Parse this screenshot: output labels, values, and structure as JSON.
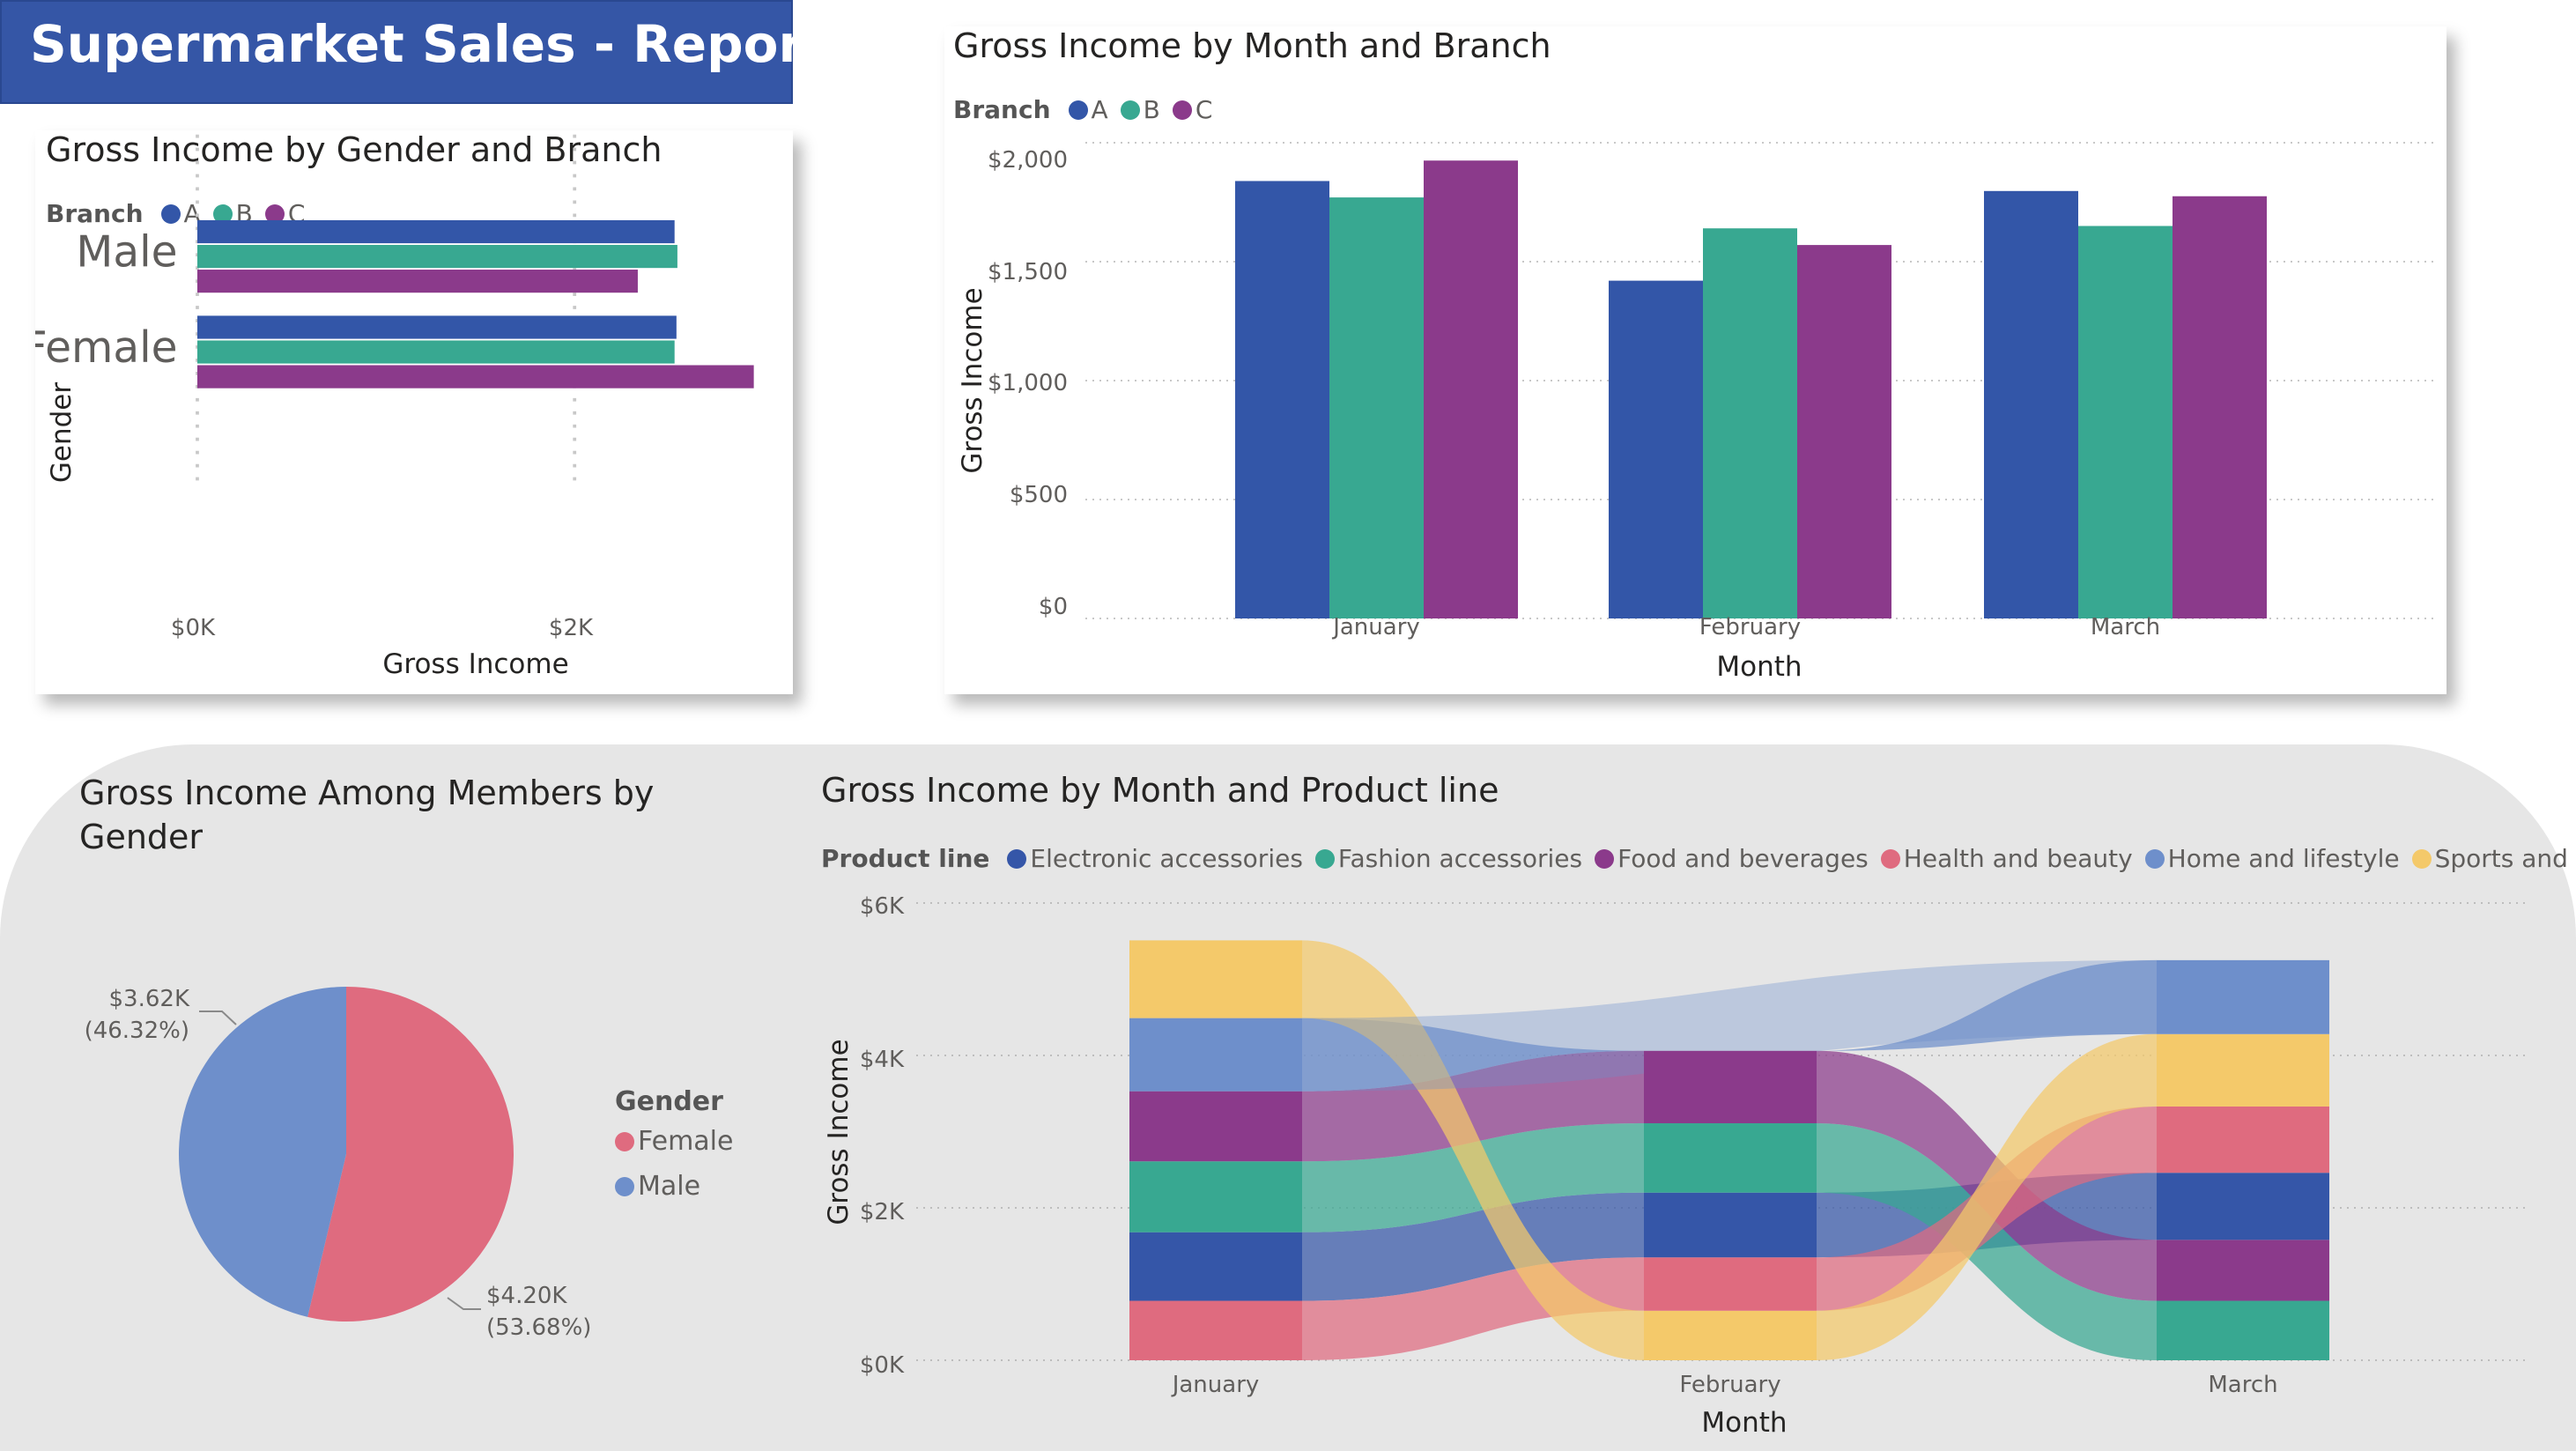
{
  "report": {
    "title": "Supermarket Sales - Report"
  },
  "colors": {
    "A": "#3356a8",
    "B": "#38a891",
    "C": "#8b3a8b",
    "female": "#df6b7f",
    "male": "#6e8fcb",
    "electronic": "#3556a8",
    "fashion": "#38a891",
    "food": "#8b3a8b",
    "health": "#df6b7f",
    "home": "#6e8fcb",
    "sports": "#f4c96a"
  },
  "charts": {
    "gender_branch": {
      "title": "Gross Income by Gender and Branch",
      "legend_title": "Branch",
      "legend": [
        "A",
        "B",
        "C"
      ],
      "xlabel": "Gross Income",
      "ylabel": "Gender",
      "xticks": [
        "$0K",
        "$2K"
      ]
    },
    "month_branch": {
      "title": "Gross Income by Month and Branch",
      "legend_title": "Branch",
      "legend": [
        "A",
        "B",
        "C"
      ],
      "xlabel": "Month",
      "ylabel": "Gross Income",
      "yticks": [
        "$2,000",
        "$1,500",
        "$1,000",
        "$500",
        "$0"
      ]
    },
    "members_gender": {
      "title_line1": "Gross Income Among Members by",
      "title_line2": "Gender",
      "legend_title": "Gender",
      "legend": [
        "Female",
        "Male"
      ],
      "male_label_value": "$3.62K",
      "male_label_pct": "(46.32%)",
      "female_label_value": "$4.20K",
      "female_label_pct": "(53.68%)"
    },
    "month_product": {
      "title": "Gross Income by Month and Product line",
      "legend_title": "Product line",
      "legend": [
        "Electronic accessories",
        "Fashion accessories",
        "Food and beverages",
        "Health and beauty",
        "Home and lifestyle",
        "Sports and travel"
      ],
      "xlabel": "Month",
      "ylabel": "Gross Income",
      "yticks": [
        "$6K",
        "$4K",
        "$2K",
        "$0K"
      ]
    }
  },
  "chart_data": [
    {
      "type": "bar",
      "orientation": "horizontal",
      "title": "Gross Income by Gender and Branch",
      "categories": [
        "Male",
        "Female"
      ],
      "series": [
        {
          "name": "A",
          "values": [
            2530,
            2540
          ]
        },
        {
          "name": "B",
          "values": [
            2545,
            2530
          ]
        },
        {
          "name": "C",
          "values": [
            2335,
            2950
          ]
        }
      ],
      "xlabel": "Gross Income",
      "ylabel": "Gender",
      "xlim": [
        0,
        3000
      ],
      "grid": true,
      "legend": "top-left"
    },
    {
      "type": "bar",
      "title": "Gross Income by Month and Branch",
      "categories": [
        "January",
        "February",
        "March"
      ],
      "series": [
        {
          "name": "A",
          "values": [
            1839,
            1420,
            1797
          ]
        },
        {
          "name": "B",
          "values": [
            1770,
            1640,
            1650
          ]
        },
        {
          "name": "C",
          "values": [
            1925,
            1570,
            1775
          ]
        }
      ],
      "xlabel": "Month",
      "ylabel": "Gross Income",
      "ylim": [
        0,
        2000
      ],
      "grid": true,
      "legend": "top-left"
    },
    {
      "type": "pie",
      "title": "Gross Income Among Members by Gender",
      "categories": [
        "Female",
        "Male"
      ],
      "values": [
        4200,
        3620
      ],
      "percentages": [
        53.68,
        46.32
      ],
      "legend": "right"
    },
    {
      "type": "area",
      "subtype": "ribbon",
      "title": "Gross Income by Month and Product line",
      "categories": [
        "January",
        "February",
        "March"
      ],
      "series": [
        {
          "name": "Electronic accessories",
          "values": [
            900,
            850,
            880
          ]
        },
        {
          "name": "Fashion accessories",
          "values": [
            930,
            910,
            780
          ]
        },
        {
          "name": "Food and beverages",
          "values": [
            920,
            950,
            800
          ]
        },
        {
          "name": "Health and beauty",
          "values": [
            780,
            700,
            870
          ]
        },
        {
          "name": "Home and lifestyle",
          "values": [
            960,
            0,
            970
          ]
        },
        {
          "name": "Sports and travel",
          "values": [
            1020,
            650,
            950
          ]
        }
      ],
      "xlabel": "Month",
      "ylabel": "Gross Income",
      "ylim": [
        0,
        6000
      ],
      "grid": true,
      "legend": "top-left"
    }
  ]
}
